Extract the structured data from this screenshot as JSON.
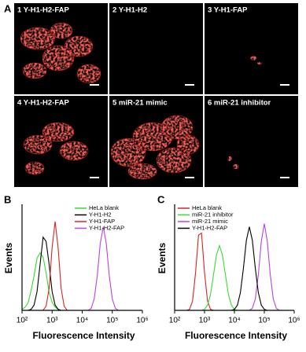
{
  "panel_a": {
    "label": "A",
    "images": [
      {
        "label": "1 Y-H1-H2-FAP"
      },
      {
        "label": "2 Y-H1-H2"
      },
      {
        "label": "3 Y-H1-FAP"
      },
      {
        "label": "4 Y-H1-H2-FAP"
      },
      {
        "label": "5 miR-21 mimic"
      },
      {
        "label": "6 miR-21 inhibitor"
      }
    ]
  },
  "chart_data": [
    {
      "type": "line",
      "panel_label": "B",
      "xlabel": "Fluorescence Intensity",
      "ylabel": "Events",
      "x": [
        100,
        126,
        158,
        200,
        251,
        316,
        398,
        501,
        631,
        794,
        1000,
        1259,
        1585,
        1995,
        2512,
        3162,
        3981,
        5012,
        6310,
        7943,
        10000,
        12589,
        15849,
        19953,
        25119,
        31623,
        39811,
        50119,
        63096,
        79433,
        100000,
        125893,
        158489,
        199526,
        251189,
        316228,
        398107,
        501187,
        630957,
        794328,
        1000000
      ],
      "xscale": "log",
      "xlim": [
        100,
        1000000
      ],
      "ylim": [
        0,
        100
      ],
      "xticks": [
        {
          "value": 100,
          "label": "10²"
        },
        {
          "value": 1000,
          "label": "10³"
        },
        {
          "value": 10000,
          "label": "10⁴"
        },
        {
          "value": 100000,
          "label": "10⁵"
        },
        {
          "value": 1000000,
          "label": "10⁶"
        }
      ],
      "legend": "upper right",
      "series": [
        {
          "name": "HeLa blank",
          "color": "#33dd33",
          "values": [
            1,
            3,
            7,
            19,
            33,
            50,
            55,
            51,
            36,
            17,
            8,
            3,
            1,
            0,
            0,
            0,
            0,
            0,
            0,
            0,
            0,
            0,
            0,
            0,
            0,
            0,
            0,
            0,
            0,
            0,
            0,
            0,
            0,
            0,
            0,
            0,
            0,
            0,
            0,
            0,
            0
          ]
        },
        {
          "name": "Y-H1-H2",
          "color": "#000000",
          "values": [
            0,
            0,
            0,
            1,
            5,
            18,
            44,
            70,
            66,
            44,
            18,
            5,
            1,
            0,
            0,
            0,
            0,
            0,
            0,
            0,
            0,
            0,
            0,
            0,
            0,
            0,
            0,
            0,
            0,
            0,
            0,
            0,
            0,
            0,
            0,
            0,
            0,
            0,
            0,
            0,
            0
          ]
        },
        {
          "name": "Y-H1-FAP",
          "color": "#dd2222",
          "values": [
            0,
            0,
            0,
            0,
            0,
            0,
            0,
            0,
            4,
            21,
            60,
            85,
            60,
            21,
            4,
            0,
            0,
            0,
            0,
            0,
            0,
            0,
            0,
            0,
            0,
            0,
            0,
            0,
            0,
            0,
            0,
            0,
            0,
            0,
            0,
            0,
            0,
            0,
            0,
            0,
            0
          ]
        },
        {
          "name": "Y-H1-H2-FAP",
          "color": "#bb44dd",
          "values": [
            0,
            0,
            0,
            0,
            0,
            0,
            0,
            0,
            0,
            0,
            0,
            0,
            0,
            0,
            0,
            0,
            0,
            0,
            0,
            0,
            0,
            0,
            0,
            2,
            11,
            33,
            64,
            80,
            64,
            33,
            11,
            2,
            0,
            0,
            0,
            0,
            0,
            0,
            0,
            0,
            0
          ]
        }
      ]
    },
    {
      "type": "line",
      "panel_label": "C",
      "xlabel": "Fluorescence Intensity",
      "ylabel": "Events",
      "x": [
        100,
        126,
        158,
        200,
        251,
        316,
        398,
        501,
        631,
        794,
        1000,
        1259,
        1585,
        1995,
        2512,
        3162,
        3981,
        5012,
        6310,
        7943,
        10000,
        12589,
        15849,
        19953,
        25119,
        31623,
        39811,
        50119,
        63096,
        79433,
        100000,
        125893,
        158489,
        199526,
        251189,
        316228,
        398107,
        501187,
        630957,
        794328,
        1000000
      ],
      "xscale": "log",
      "xlim": [
        100,
        1000000
      ],
      "ylim": [
        0,
        100
      ],
      "xticks": [
        {
          "value": 100,
          "label": "10²"
        },
        {
          "value": 1000,
          "label": "10³"
        },
        {
          "value": 10000,
          "label": "10⁴"
        },
        {
          "value": 100000,
          "label": "10⁵"
        },
        {
          "value": 1000000,
          "label": "10⁶"
        }
      ],
      "legend": "upper left",
      "series": [
        {
          "name": "HeLa blank",
          "color": "#dd2222",
          "values": [
            0,
            0,
            0,
            0,
            0,
            1,
            9,
            36,
            72,
            74,
            36,
            9,
            1,
            0,
            0,
            0,
            0,
            0,
            0,
            0,
            0,
            0,
            0,
            0,
            0,
            0,
            0,
            0,
            0,
            0,
            0,
            0,
            0,
            0,
            0,
            0,
            0,
            0,
            0,
            0,
            0
          ]
        },
        {
          "name": "miR-21 inhibitor",
          "color": "#33dd33",
          "values": [
            0,
            0,
            0,
            0,
            0,
            0,
            0,
            0,
            0,
            0,
            1,
            5,
            15,
            34,
            53,
            62,
            53,
            34,
            15,
            5,
            1,
            0,
            0,
            0,
            0,
            0,
            0,
            0,
            0,
            0,
            0,
            0,
            0,
            0,
            0,
            0,
            0,
            0,
            0,
            0,
            0
          ]
        },
        {
          "name": "miR-21 mimic",
          "color": "#bb44dd",
          "values": [
            0,
            0,
            0,
            0,
            0,
            0,
            0,
            0,
            0,
            0,
            0,
            0,
            0,
            0,
            0,
            0,
            0,
            0,
            0,
            0,
            0,
            0,
            0,
            0,
            0,
            0,
            2,
            11,
            34,
            66,
            83,
            66,
            34,
            11,
            2,
            0,
            0,
            0,
            0,
            0,
            0
          ]
        },
        {
          "name": "Y-H1-H2-FAP",
          "color": "#000000",
          "values": [
            0,
            0,
            0,
            0,
            0,
            0,
            0,
            0,
            0,
            0,
            0,
            0,
            0,
            0,
            0,
            0,
            0,
            0,
            0,
            0,
            1,
            5,
            17,
            40,
            67,
            80,
            67,
            40,
            17,
            5,
            1,
            0,
            0,
            0,
            0,
            0,
            0,
            0,
            0,
            0,
            0
          ]
        }
      ]
    }
  ]
}
